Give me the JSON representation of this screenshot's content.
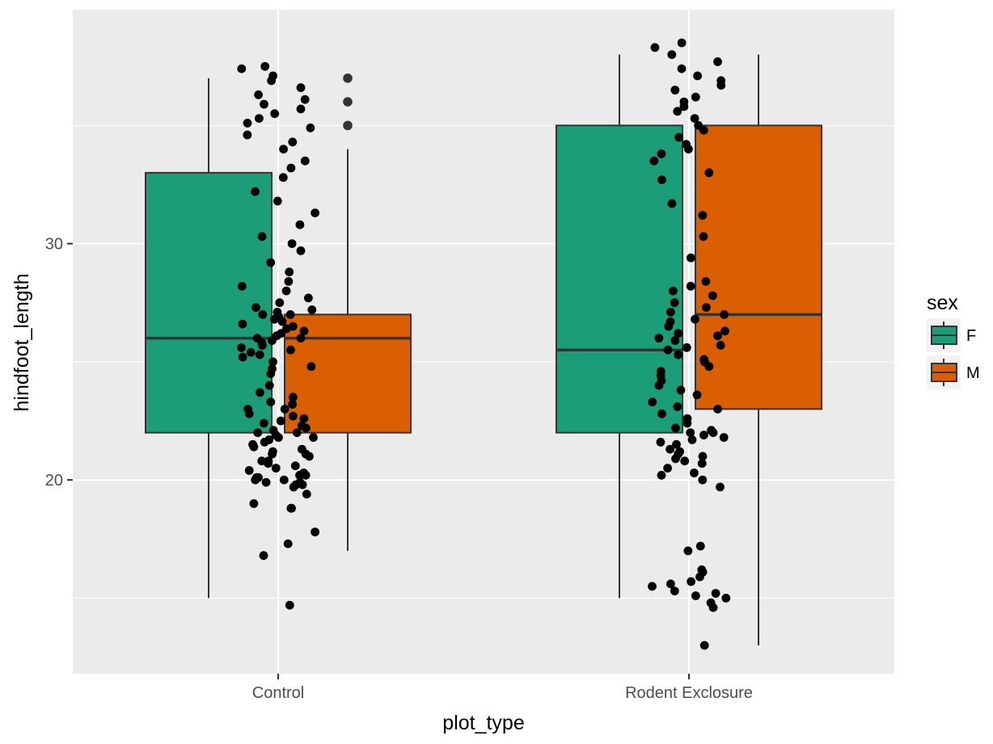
{
  "chart_data": {
    "type": "boxplot",
    "xlabel": "plot_type",
    "ylabel": "hindfoot_length",
    "categories": [
      "Control",
      "Rodent Exclosure"
    ],
    "y_ticks": [
      20,
      30
    ],
    "y_tick_labels": [
      "20",
      "30"
    ],
    "ylim": [
      11.8,
      39.9
    ],
    "grid": true,
    "colors": {
      "F": "#1b9e77",
      "M": "#d95f02",
      "panel": "#ebebeb",
      "grid": "#ffffff",
      "point": "#000000"
    },
    "legend": {
      "title": "sex",
      "position": "right",
      "entries": [
        "F",
        "M"
      ]
    },
    "boxes": [
      {
        "category": "Control",
        "sex": "F",
        "whisker_low": 15,
        "q1": 22,
        "median": 26,
        "q3": 33,
        "whisker_high": 37,
        "outliers": []
      },
      {
        "category": "Control",
        "sex": "M",
        "whisker_low": 17,
        "q1": 22,
        "median": 26,
        "q3": 27,
        "whisker_high": 34,
        "outliers": [
          35,
          36,
          37
        ]
      },
      {
        "category": "Rodent Exclosure",
        "sex": "F",
        "whisker_low": 15,
        "q1": 22,
        "median": 25.5,
        "q3": 35,
        "whisker_high": 38,
        "outliers": []
      },
      {
        "category": "Rodent Exclosure",
        "sex": "M",
        "whisker_low": 13,
        "q1": 23,
        "median": 27,
        "q3": 35,
        "whisker_high": 38,
        "outliers": []
      }
    ],
    "jitter_points": [
      {
        "category": "Control",
        "values": [
          14.7,
          16.8,
          17.3,
          17.8,
          18.8,
          18.8,
          19.0,
          19.4,
          19.7,
          19.8,
          19.8,
          19.9,
          19.9,
          20.0,
          20.0,
          20.1,
          20.1,
          20.2,
          20.2,
          20.3,
          20.4,
          20.5,
          20.6,
          20.7,
          20.8,
          20.8,
          21.0,
          21.1,
          21.1,
          21.2,
          21.3,
          21.4,
          21.5,
          21.6,
          21.7,
          21.8,
          21.8,
          21.9,
          22.0,
          22.0,
          22.1,
          22.2,
          22.3,
          22.4,
          22.5,
          22.6,
          22.7,
          22.8,
          23.0,
          23.0,
          23.2,
          23.3,
          23.5,
          23.7,
          24.0,
          24.5,
          24.7,
          24.8,
          25.0,
          25.2,
          25.3,
          25.4,
          25.5,
          25.6,
          25.7,
          25.8,
          25.9,
          26.0,
          26.0,
          26.1,
          26.2,
          26.3,
          26.4,
          26.5,
          26.6,
          26.7,
          26.8,
          26.9,
          27.0,
          27.0,
          27.1,
          27.2,
          27.3,
          27.5,
          27.7,
          28.0,
          28.2,
          28.4,
          28.8,
          29.2,
          29.7,
          30.0,
          30.3,
          30.8,
          31.3,
          31.8,
          32.2,
          32.8,
          33.2,
          33.5,
          34.0,
          34.3,
          34.6,
          34.9,
          35.1,
          35.3,
          35.5,
          35.7,
          35.9,
          36.1,
          36.3,
          36.6,
          36.9,
          37.1,
          37.4,
          37.5
        ]
      },
      {
        "category": "Rodent Exclosure",
        "values": [
          13.0,
          14.6,
          14.8,
          15.0,
          15.1,
          15.2,
          15.3,
          15.5,
          15.6,
          15.7,
          15.9,
          16.1,
          16.2,
          17.0,
          17.2,
          19.7,
          20.0,
          20.2,
          20.3,
          20.5,
          20.7,
          20.8,
          20.9,
          21.0,
          21.1,
          21.2,
          21.3,
          21.5,
          21.6,
          21.7,
          21.8,
          21.9,
          22.0,
          22.0,
          22.1,
          22.2,
          22.4,
          22.6,
          22.8,
          23.0,
          23.1,
          23.3,
          23.6,
          23.8,
          24.0,
          24.2,
          24.4,
          24.6,
          24.8,
          25.0,
          25.1,
          25.3,
          25.5,
          25.6,
          25.7,
          25.9,
          26.0,
          26.1,
          26.2,
          26.3,
          26.5,
          26.7,
          26.8,
          27.0,
          27.1,
          27.3,
          27.5,
          27.8,
          28.0,
          28.2,
          28.4,
          29.4,
          30.3,
          31.2,
          31.7,
          32.7,
          33.0,
          33.5,
          33.8,
          34.0,
          34.2,
          34.5,
          34.8,
          35.0,
          35.3,
          35.6,
          35.8,
          36.0,
          36.2,
          36.5,
          36.7,
          36.9,
          37.1,
          37.4,
          37.7,
          38.0,
          38.3,
          38.5
        ]
      }
    ]
  }
}
